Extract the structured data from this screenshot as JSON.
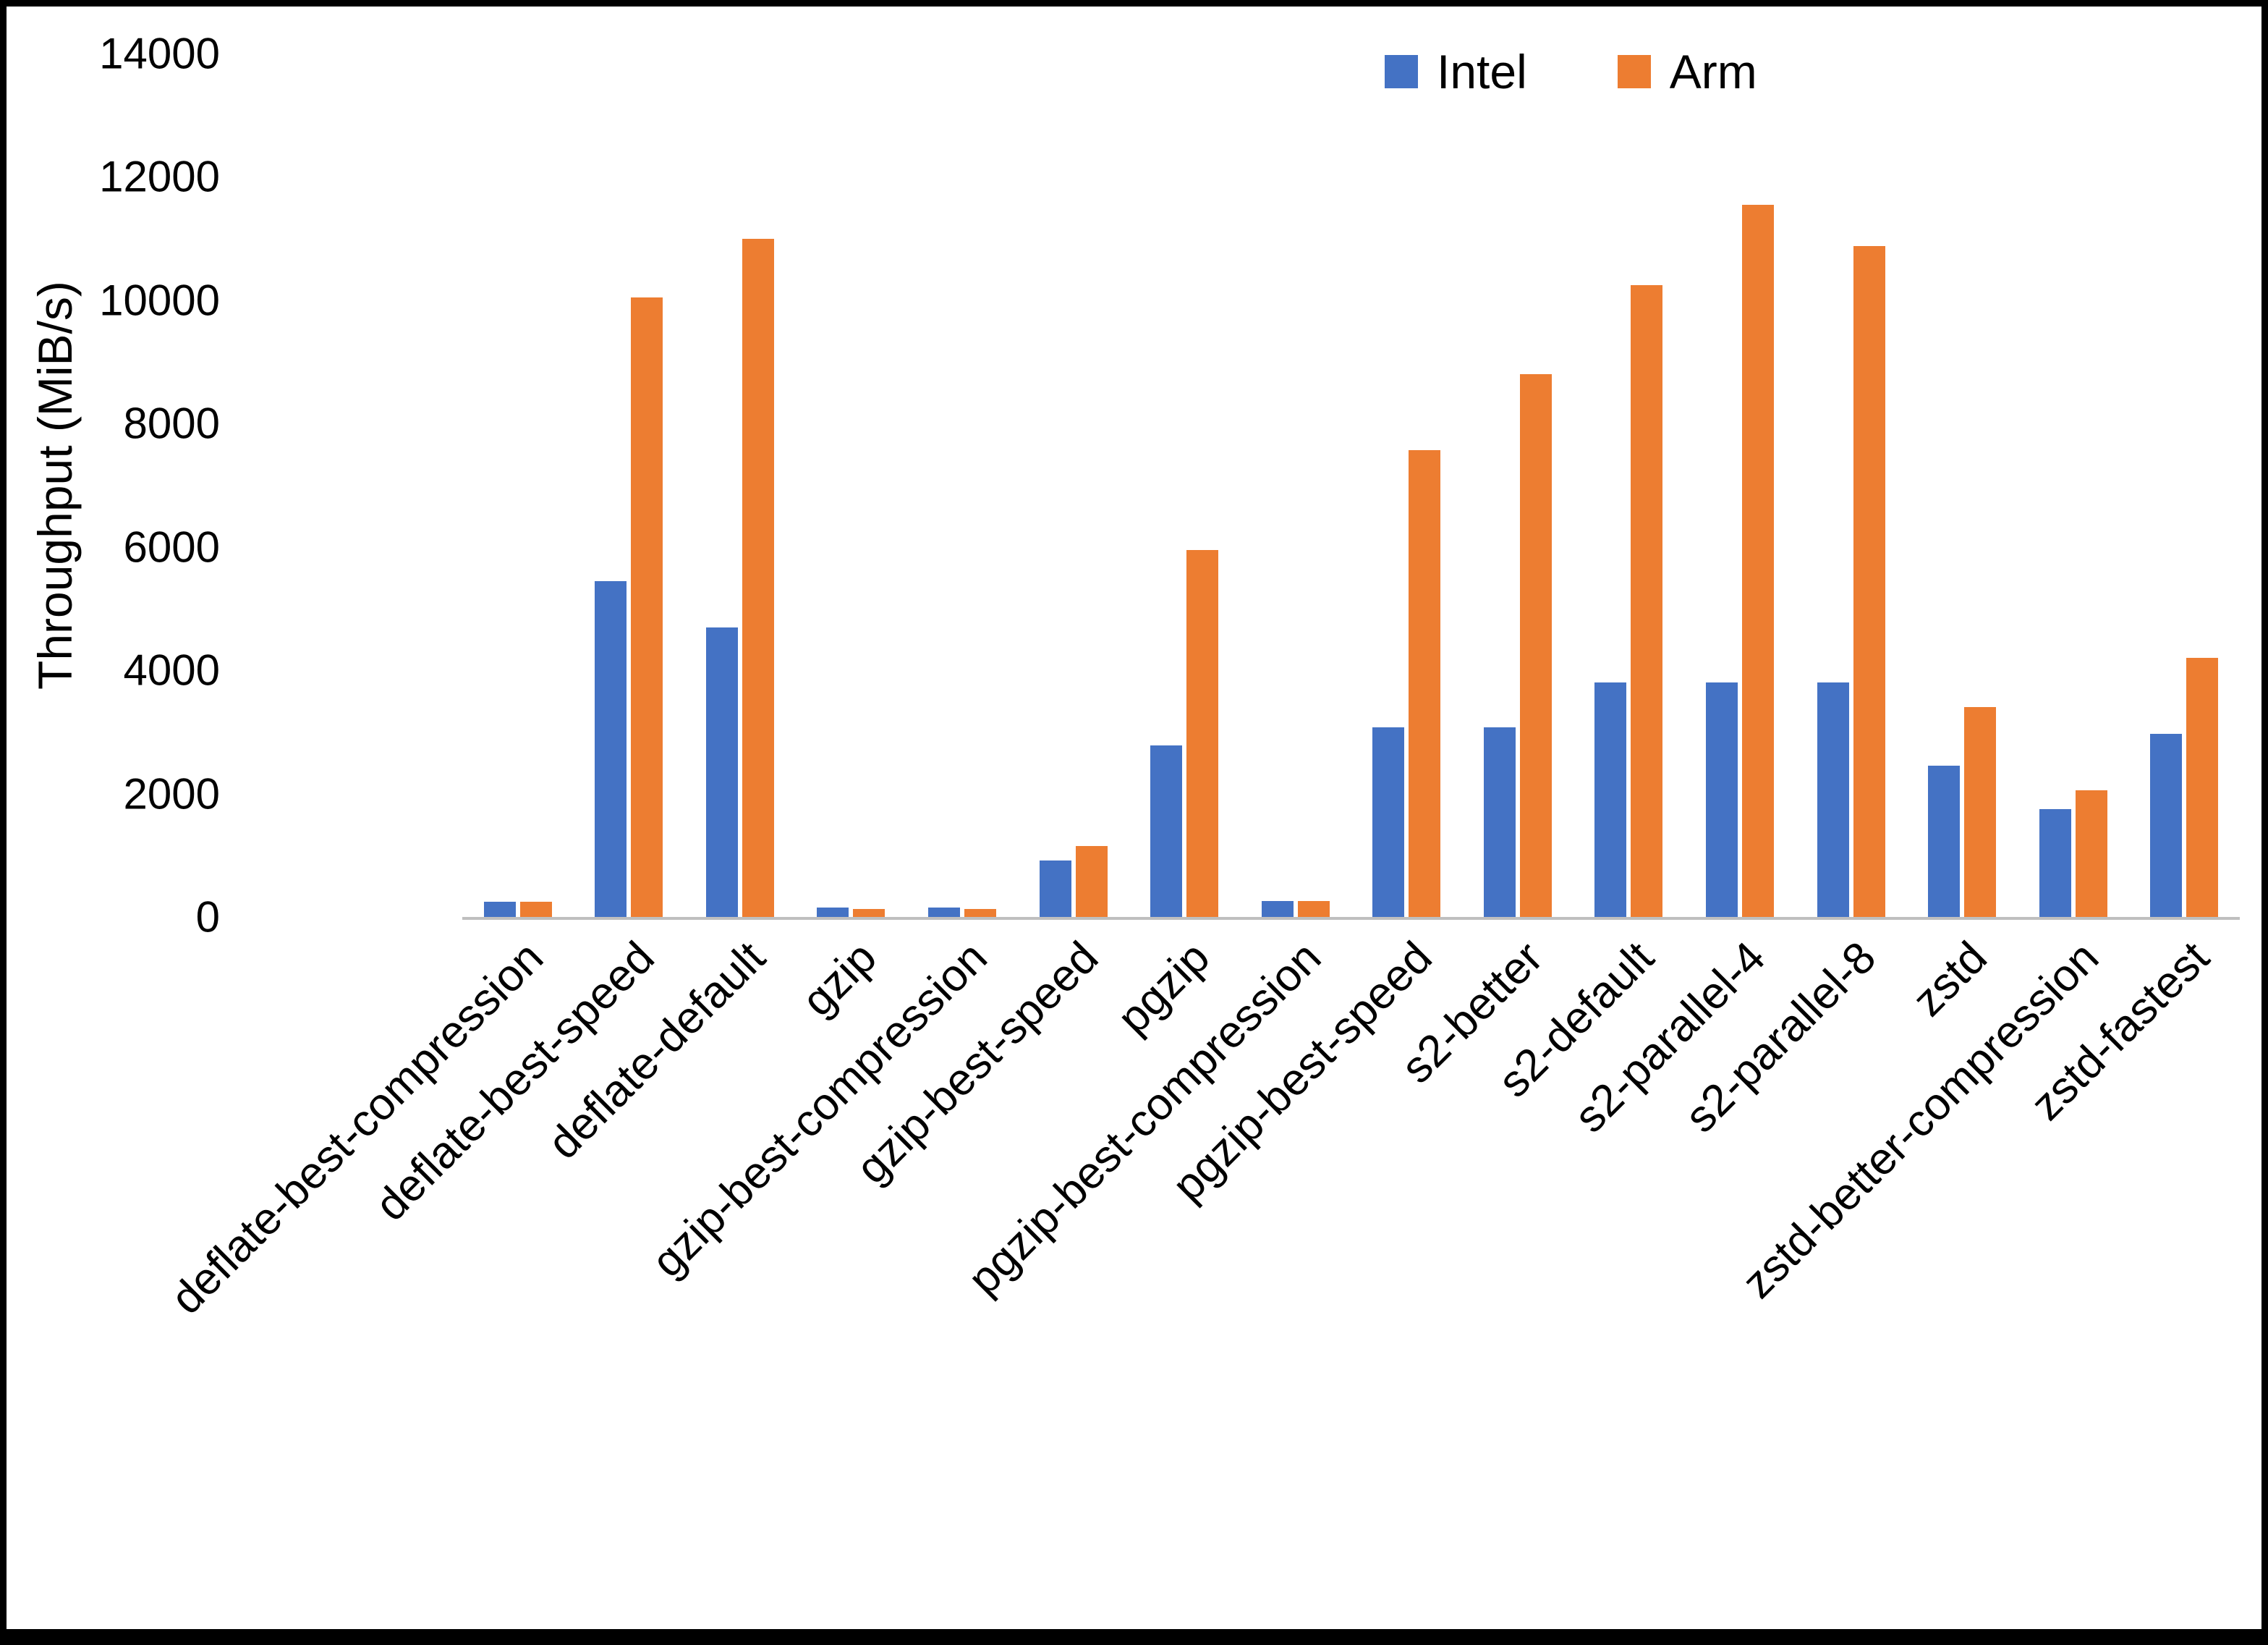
{
  "chart_data": {
    "type": "bar",
    "ylabel": "Throughput (MiB/s)",
    "xlabel": "",
    "ylim": [
      0,
      14000
    ],
    "ytick_step": 2000,
    "grid": false,
    "legend_position": "top-right",
    "axis_line_color": "#BFBFBF",
    "categories": [
      "deflate-best-compression",
      "deflate-best-speed",
      "deflate-default",
      "gzip",
      "gzip-best-compression",
      "gzip-best-speed",
      "pgzip",
      "pgzip-best-compression",
      "pgzip-best-speed",
      "s2-better",
      "s2-default",
      "s2-parallel-4",
      "s2-parallel-8",
      "zstd",
      "zstd-better-compression",
      "zstd-fastest"
    ],
    "series": [
      {
        "name": "Intel",
        "color": "#4472C4",
        "values": [
          250,
          5450,
          4700,
          150,
          150,
          920,
          2780,
          260,
          3070,
          3080,
          3800,
          3800,
          3800,
          2450,
          1750,
          2970
        ]
      },
      {
        "name": "Arm",
        "color": "#ED7D31",
        "values": [
          250,
          10050,
          11000,
          130,
          130,
          1150,
          5950,
          260,
          7570,
          8800,
          10250,
          11550,
          10880,
          3400,
          2050,
          4200
        ]
      }
    ]
  }
}
